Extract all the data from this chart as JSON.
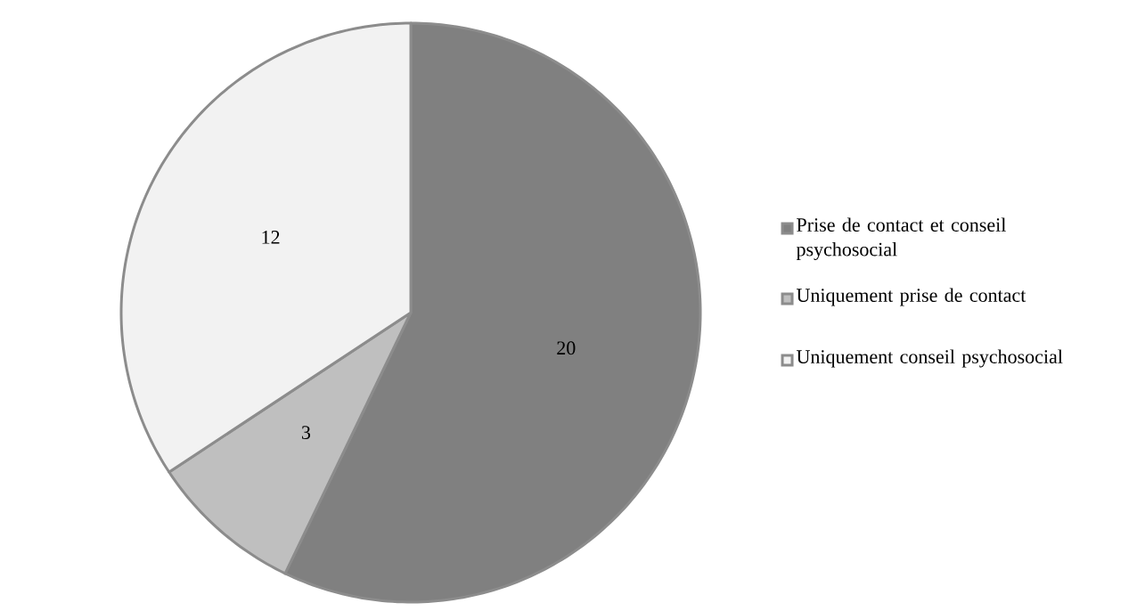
{
  "chart_data": {
    "type": "pie",
    "categories": [
      "Prise de contact et conseil psychosocial",
      "Uniquement prise de contact",
      "Uniquement conseil psychosocial"
    ],
    "values": [
      20,
      3,
      12
    ],
    "colors": [
      "#808080",
      "#bfbfbf",
      "#f2f2f2"
    ],
    "data_labels": true,
    "legend": "right"
  }
}
